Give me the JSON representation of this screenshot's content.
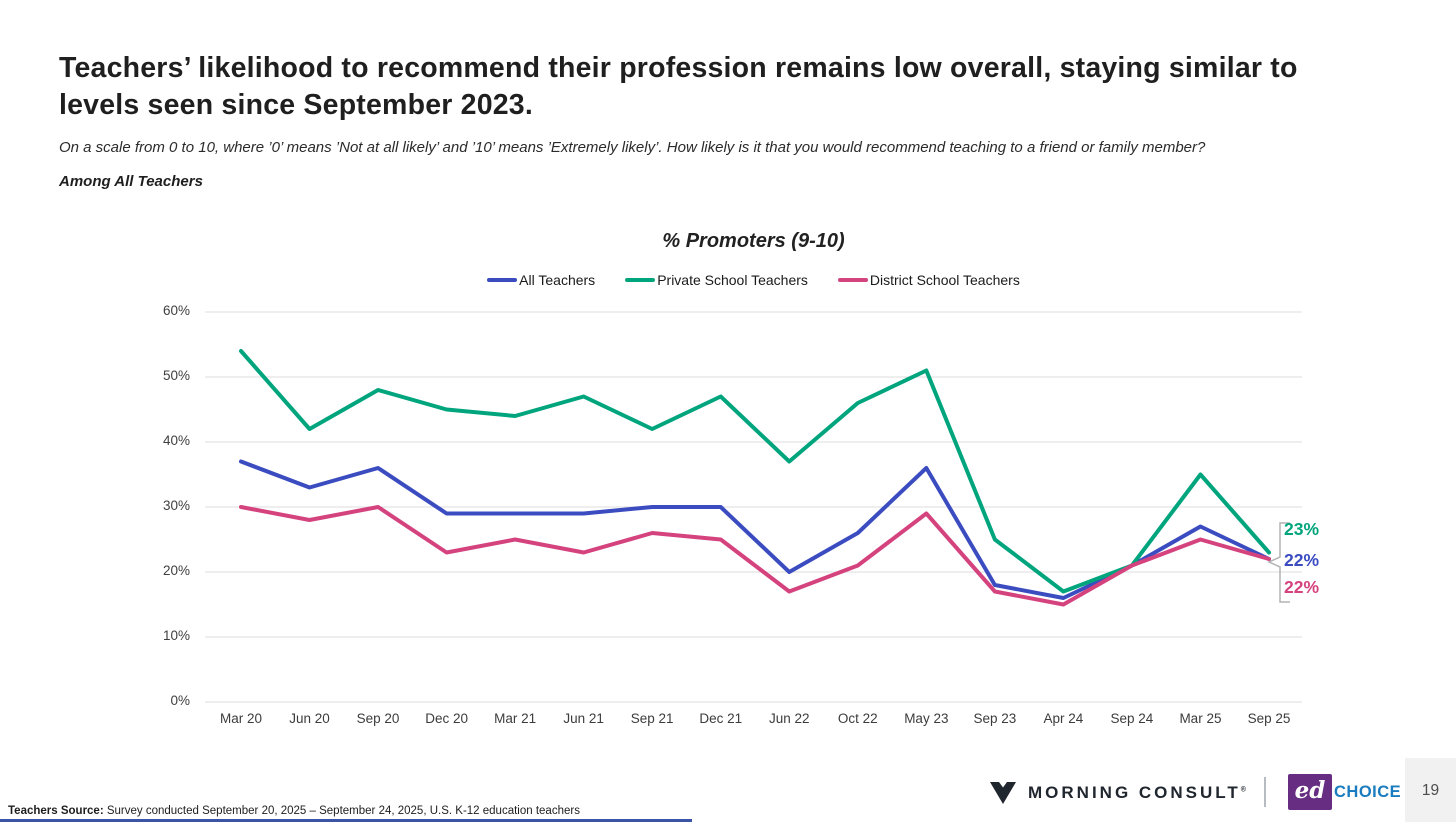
{
  "page": {
    "title": "Teachers’ likelihood to recommend their profession remains low overall, staying similar to levels seen since September 2023.",
    "subtitle": "On a scale from 0 to 10, where ’0’ means ’Not at all likely’ and ’10’ means ’Extremely likely’. How likely is it that you would recommend teaching to a friend or family member?",
    "population_label": "Among All Teachers",
    "page_number": "19"
  },
  "chart_data": {
    "type": "line",
    "title": "% Promoters (9-10)",
    "categories": [
      "Mar 20",
      "Jun 20",
      "Sep 20",
      "Dec 20",
      "Mar 21",
      "Jun 21",
      "Sep 21",
      "Dec 21",
      "Jun 22",
      "Oct 22",
      "May 23",
      "Sep 23",
      "Apr 24",
      "Sep 24",
      "Mar 25",
      "Sep 25"
    ],
    "series": [
      {
        "name": "All Teachers",
        "color": "#3b4cc0",
        "values": [
          37,
          33,
          36,
          29,
          29,
          29,
          30,
          30,
          20,
          26,
          36,
          18,
          16,
          21,
          27,
          22
        ]
      },
      {
        "name": "Private School Teachers",
        "color": "#00a57d",
        "values": [
          54,
          42,
          48,
          45,
          44,
          47,
          42,
          47,
          37,
          46,
          51,
          25,
          17,
          21,
          35,
          23
        ]
      },
      {
        "name": "District School Teachers",
        "color": "#d5437f",
        "values": [
          30,
          28,
          30,
          23,
          25,
          23,
          26,
          25,
          17,
          21,
          29,
          17,
          15,
          21,
          25,
          22
        ]
      }
    ],
    "end_labels": [
      {
        "text": "23%",
        "color": "#00a57d"
      },
      {
        "text": "22%",
        "color": "#3b4cc0"
      },
      {
        "text": "22%",
        "color": "#d5437f"
      }
    ],
    "ylim": [
      0,
      60
    ],
    "ytick_step": 10,
    "ytick_suffix": "%",
    "grid": true,
    "legend_position": "top-center",
    "gridline_color": "#e3e3e3"
  },
  "footer": {
    "source_prefix": "Teachers Source:",
    "source_text": " Survey conducted September 20, 2025 – September 24, 2025, U.S. K-12 education teachers",
    "morning_consult_wordmark": "MORNING CONSULT",
    "morning_consult_reg": "®",
    "edchoice_ed": "ed",
    "edchoice_choice": "CHOICE"
  }
}
